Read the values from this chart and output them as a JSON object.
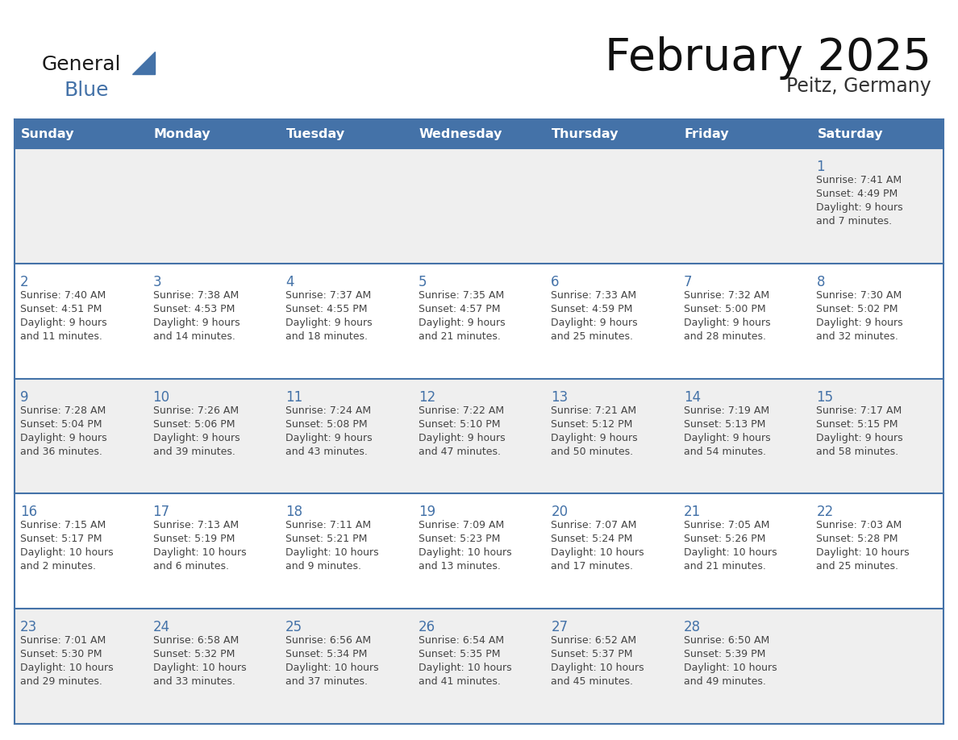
{
  "title": "February 2025",
  "subtitle": "Peitz, Germany",
  "days_of_week": [
    "Sunday",
    "Monday",
    "Tuesday",
    "Wednesday",
    "Thursday",
    "Friday",
    "Saturday"
  ],
  "header_bg": "#4472A8",
  "header_text_color": "#FFFFFF",
  "row_bg_odd": "#EFEFEF",
  "row_bg_even": "#FFFFFF",
  "cell_border_color": "#4472A8",
  "day_number_color": "#4472A8",
  "text_color": "#444444",
  "calendar_data": [
    [
      {
        "day": null,
        "lines": []
      },
      {
        "day": null,
        "lines": []
      },
      {
        "day": null,
        "lines": []
      },
      {
        "day": null,
        "lines": []
      },
      {
        "day": null,
        "lines": []
      },
      {
        "day": null,
        "lines": []
      },
      {
        "day": 1,
        "lines": [
          "Sunrise: 7:41 AM",
          "Sunset: 4:49 PM",
          "Daylight: 9 hours",
          "and 7 minutes."
        ]
      }
    ],
    [
      {
        "day": 2,
        "lines": [
          "Sunrise: 7:40 AM",
          "Sunset: 4:51 PM",
          "Daylight: 9 hours",
          "and 11 minutes."
        ]
      },
      {
        "day": 3,
        "lines": [
          "Sunrise: 7:38 AM",
          "Sunset: 4:53 PM",
          "Daylight: 9 hours",
          "and 14 minutes."
        ]
      },
      {
        "day": 4,
        "lines": [
          "Sunrise: 7:37 AM",
          "Sunset: 4:55 PM",
          "Daylight: 9 hours",
          "and 18 minutes."
        ]
      },
      {
        "day": 5,
        "lines": [
          "Sunrise: 7:35 AM",
          "Sunset: 4:57 PM",
          "Daylight: 9 hours",
          "and 21 minutes."
        ]
      },
      {
        "day": 6,
        "lines": [
          "Sunrise: 7:33 AM",
          "Sunset: 4:59 PM",
          "Daylight: 9 hours",
          "and 25 minutes."
        ]
      },
      {
        "day": 7,
        "lines": [
          "Sunrise: 7:32 AM",
          "Sunset: 5:00 PM",
          "Daylight: 9 hours",
          "and 28 minutes."
        ]
      },
      {
        "day": 8,
        "lines": [
          "Sunrise: 7:30 AM",
          "Sunset: 5:02 PM",
          "Daylight: 9 hours",
          "and 32 minutes."
        ]
      }
    ],
    [
      {
        "day": 9,
        "lines": [
          "Sunrise: 7:28 AM",
          "Sunset: 5:04 PM",
          "Daylight: 9 hours",
          "and 36 minutes."
        ]
      },
      {
        "day": 10,
        "lines": [
          "Sunrise: 7:26 AM",
          "Sunset: 5:06 PM",
          "Daylight: 9 hours",
          "and 39 minutes."
        ]
      },
      {
        "day": 11,
        "lines": [
          "Sunrise: 7:24 AM",
          "Sunset: 5:08 PM",
          "Daylight: 9 hours",
          "and 43 minutes."
        ]
      },
      {
        "day": 12,
        "lines": [
          "Sunrise: 7:22 AM",
          "Sunset: 5:10 PM",
          "Daylight: 9 hours",
          "and 47 minutes."
        ]
      },
      {
        "day": 13,
        "lines": [
          "Sunrise: 7:21 AM",
          "Sunset: 5:12 PM",
          "Daylight: 9 hours",
          "and 50 minutes."
        ]
      },
      {
        "day": 14,
        "lines": [
          "Sunrise: 7:19 AM",
          "Sunset: 5:13 PM",
          "Daylight: 9 hours",
          "and 54 minutes."
        ]
      },
      {
        "day": 15,
        "lines": [
          "Sunrise: 7:17 AM",
          "Sunset: 5:15 PM",
          "Daylight: 9 hours",
          "and 58 minutes."
        ]
      }
    ],
    [
      {
        "day": 16,
        "lines": [
          "Sunrise: 7:15 AM",
          "Sunset: 5:17 PM",
          "Daylight: 10 hours",
          "and 2 minutes."
        ]
      },
      {
        "day": 17,
        "lines": [
          "Sunrise: 7:13 AM",
          "Sunset: 5:19 PM",
          "Daylight: 10 hours",
          "and 6 minutes."
        ]
      },
      {
        "day": 18,
        "lines": [
          "Sunrise: 7:11 AM",
          "Sunset: 5:21 PM",
          "Daylight: 10 hours",
          "and 9 minutes."
        ]
      },
      {
        "day": 19,
        "lines": [
          "Sunrise: 7:09 AM",
          "Sunset: 5:23 PM",
          "Daylight: 10 hours",
          "and 13 minutes."
        ]
      },
      {
        "day": 20,
        "lines": [
          "Sunrise: 7:07 AM",
          "Sunset: 5:24 PM",
          "Daylight: 10 hours",
          "and 17 minutes."
        ]
      },
      {
        "day": 21,
        "lines": [
          "Sunrise: 7:05 AM",
          "Sunset: 5:26 PM",
          "Daylight: 10 hours",
          "and 21 minutes."
        ]
      },
      {
        "day": 22,
        "lines": [
          "Sunrise: 7:03 AM",
          "Sunset: 5:28 PM",
          "Daylight: 10 hours",
          "and 25 minutes."
        ]
      }
    ],
    [
      {
        "day": 23,
        "lines": [
          "Sunrise: 7:01 AM",
          "Sunset: 5:30 PM",
          "Daylight: 10 hours",
          "and 29 minutes."
        ]
      },
      {
        "day": 24,
        "lines": [
          "Sunrise: 6:58 AM",
          "Sunset: 5:32 PM",
          "Daylight: 10 hours",
          "and 33 minutes."
        ]
      },
      {
        "day": 25,
        "lines": [
          "Sunrise: 6:56 AM",
          "Sunset: 5:34 PM",
          "Daylight: 10 hours",
          "and 37 minutes."
        ]
      },
      {
        "day": 26,
        "lines": [
          "Sunrise: 6:54 AM",
          "Sunset: 5:35 PM",
          "Daylight: 10 hours",
          "and 41 minutes."
        ]
      },
      {
        "day": 27,
        "lines": [
          "Sunrise: 6:52 AM",
          "Sunset: 5:37 PM",
          "Daylight: 10 hours",
          "and 45 minutes."
        ]
      },
      {
        "day": 28,
        "lines": [
          "Sunrise: 6:50 AM",
          "Sunset: 5:39 PM",
          "Daylight: 10 hours",
          "and 49 minutes."
        ]
      },
      {
        "day": null,
        "lines": []
      }
    ]
  ]
}
